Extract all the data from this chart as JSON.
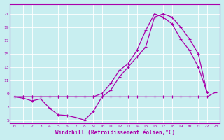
{
  "xlabel": "Windchill (Refroidissement éolien,°C)",
  "bg_color": "#c8eef0",
  "line_color": "#aa00aa",
  "xlim": [
    -0.5,
    23.5
  ],
  "ylim": [
    4.5,
    22.5
  ],
  "xticks": [
    0,
    1,
    2,
    3,
    4,
    5,
    6,
    7,
    8,
    9,
    10,
    11,
    12,
    13,
    14,
    15,
    16,
    17,
    18,
    19,
    20,
    21,
    22,
    23
  ],
  "yticks": [
    5,
    7,
    9,
    11,
    13,
    15,
    17,
    19,
    21
  ],
  "line1_x": [
    0,
    1,
    2,
    3,
    4,
    5,
    6,
    7,
    8,
    9,
    10,
    11,
    12,
    13,
    14,
    15,
    16,
    17,
    18,
    19,
    20,
    21,
    22,
    23
  ],
  "line1_y": [
    8.5,
    8.3,
    7.9,
    8.2,
    6.8,
    5.8,
    5.7,
    5.4,
    5.0,
    6.3,
    8.5,
    8.5,
    8.5,
    8.5,
    8.5,
    8.5,
    8.5,
    8.5,
    8.5,
    8.5,
    8.5,
    8.5,
    8.5,
    9.2
  ],
  "line2_x": [
    0,
    1,
    2,
    3,
    4,
    5,
    6,
    7,
    8,
    9,
    10,
    11,
    12,
    13,
    14,
    15,
    16,
    17,
    18,
    19,
    20,
    21,
    22,
    23
  ],
  "line2_y": [
    8.5,
    8.5,
    8.5,
    8.5,
    8.5,
    8.5,
    8.5,
    8.5,
    8.5,
    8.5,
    9.0,
    10.5,
    12.5,
    13.5,
    15.5,
    18.5,
    21.0,
    20.5,
    19.5,
    17.2,
    15.5,
    13.0,
    9.2,
    null
  ],
  "line3_x": [
    0,
    1,
    2,
    3,
    4,
    5,
    6,
    7,
    8,
    9,
    10,
    11,
    12,
    13,
    14,
    15,
    16,
    17,
    18,
    19,
    20,
    21,
    22,
    23
  ],
  "line3_y": [
    8.5,
    8.5,
    8.5,
    8.5,
    8.5,
    8.5,
    8.5,
    8.5,
    8.5,
    8.5,
    8.5,
    9.5,
    11.5,
    13.0,
    14.5,
    16.0,
    20.5,
    21.0,
    20.5,
    19.0,
    17.2,
    15.0,
    9.2,
    null
  ]
}
